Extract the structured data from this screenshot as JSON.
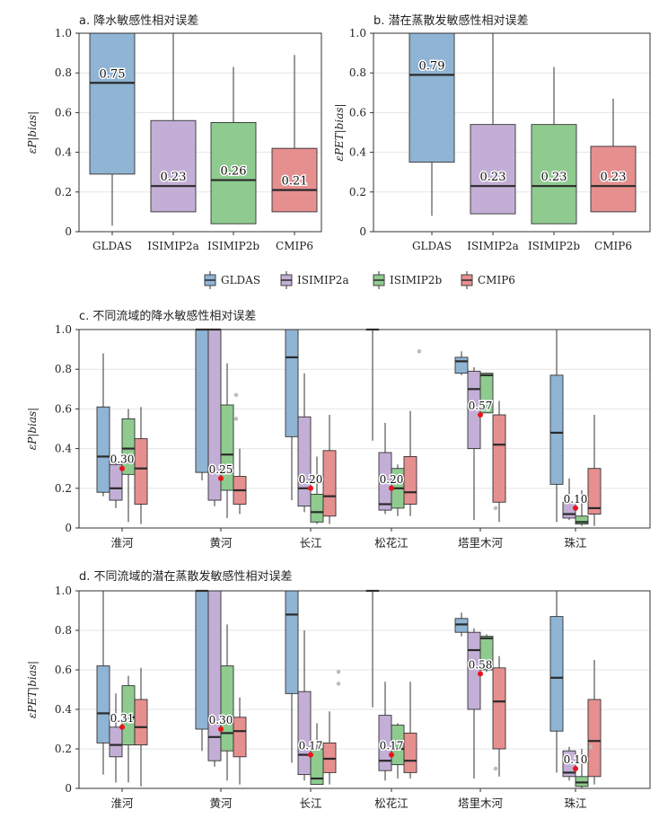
{
  "colors": {
    "GLDAS": "#8fb4d4",
    "ISIMIP2a": "#c3afd6",
    "ISIMIP2b": "#8fcb8f",
    "CMIP6": "#e68f8f",
    "mean_dot": "#e8141a",
    "outlier": "#bdbdbd"
  },
  "legend": [
    "GLDAS",
    "ISIMIP2a",
    "ISIMIP2b",
    "CMIP6"
  ],
  "chart_data": [
    {
      "type": "box",
      "title": "a. 降水敏感性相对误差",
      "ylabel": "εP|bias|",
      "ylim": [
        0,
        1.0
      ],
      "yticks": [
        "0",
        "0.2",
        "0.4",
        "0.6",
        "0.8",
        "1.0"
      ],
      "categories": [
        "GLDAS",
        "ISIMIP2a",
        "ISIMIP2b",
        "CMIP6"
      ],
      "boxes": [
        {
          "series": "GLDAS",
          "min": 0.03,
          "q1": 0.29,
          "median": 0.75,
          "q3": 1.0,
          "max": 1.0,
          "label": "0.75"
        },
        {
          "series": "ISIMIP2a",
          "min": 0.1,
          "q1": 0.1,
          "median": 0.23,
          "q3": 0.56,
          "max": 1.0,
          "label": "0.23"
        },
        {
          "series": "ISIMIP2b",
          "min": 0.04,
          "q1": 0.04,
          "median": 0.26,
          "q3": 0.55,
          "max": 0.83,
          "label": "0.26"
        },
        {
          "series": "CMIP6",
          "min": 0.1,
          "q1": 0.1,
          "median": 0.21,
          "q3": 0.42,
          "max": 0.89,
          "label": "0.21"
        }
      ]
    },
    {
      "type": "box",
      "title": "b. 潜在蒸散发敏感性相对误差",
      "ylabel": "εPET|bias|",
      "ylim": [
        0,
        1.0
      ],
      "yticks": [
        "0",
        "0.2",
        "0.4",
        "0.6",
        "0.8",
        "1.0"
      ],
      "categories": [
        "GLDAS",
        "ISIMIP2a",
        "ISIMIP2b",
        "CMIP6"
      ],
      "boxes": [
        {
          "series": "GLDAS",
          "min": 0.08,
          "q1": 0.35,
          "median": 0.79,
          "q3": 1.0,
          "max": 1.0,
          "label": "0.79"
        },
        {
          "series": "ISIMIP2a",
          "min": 0.09,
          "q1": 0.09,
          "median": 0.23,
          "q3": 0.54,
          "max": 1.0,
          "label": "0.23"
        },
        {
          "series": "ISIMIP2b",
          "min": 0.04,
          "q1": 0.04,
          "median": 0.23,
          "q3": 0.54,
          "max": 0.83,
          "label": "0.23"
        },
        {
          "series": "CMIP6",
          "min": 0.1,
          "q1": 0.1,
          "median": 0.23,
          "q3": 0.43,
          "max": 0.67,
          "label": "0.23"
        }
      ]
    },
    {
      "type": "grouped_box",
      "title": "c. 不同流域的降水敏感性相对误差",
      "ylabel": "εP|bias|",
      "ylim": [
        0,
        1.0
      ],
      "yticks": [
        "0",
        "0.2",
        "0.4",
        "0.6",
        "0.8",
        "1.0"
      ],
      "categories": [
        "淮河",
        "黄河",
        "长江",
        "松花江",
        "塔里木河",
        "珠江"
      ],
      "series": [
        "GLDAS",
        "ISIMIP2a",
        "ISIMIP2b",
        "CMIP6"
      ],
      "groups": [
        {
          "category": "淮河",
          "mean": 0.3,
          "label": "0.30",
          "boxes": [
            {
              "min": 0.16,
              "q1": 0.18,
              "median": 0.36,
              "q3": 0.61,
              "max": 0.88
            },
            {
              "min": 0.1,
              "q1": 0.14,
              "median": 0.2,
              "q3": 0.32,
              "max": 0.35
            },
            {
              "min": 0.03,
              "q1": 0.27,
              "median": 0.4,
              "q3": 0.55,
              "max": 0.6
            },
            {
              "min": 0.02,
              "q1": 0.12,
              "median": 0.3,
              "q3": 0.45,
              "max": 0.61
            }
          ],
          "outliers": []
        },
        {
          "category": "黄河",
          "mean": 0.25,
          "label": "0.25",
          "boxes": [
            {
              "min": 0.24,
              "q1": 0.28,
              "median": 1.0,
              "q3": 1.0,
              "max": 1.0
            },
            {
              "min": 0.11,
              "q1": 0.14,
              "median": 1.0,
              "q3": 1.0,
              "max": 1.0
            },
            {
              "min": 0.05,
              "q1": 0.19,
              "median": 0.37,
              "q3": 0.62,
              "max": 0.83
            },
            {
              "min": 0.07,
              "q1": 0.12,
              "median": 0.19,
              "q3": 0.26,
              "max": 0.4
            }
          ],
          "outliers": [
            {
              "series": "ISIMIP2b",
              "values": [
                0.67,
                0.55
              ]
            }
          ]
        },
        {
          "category": "长江",
          "mean": 0.2,
          "label": "0.20",
          "boxes": [
            {
              "min": 0.14,
              "q1": 0.46,
              "median": 0.86,
              "q3": 1.0,
              "max": 1.0
            },
            {
              "min": 0.08,
              "q1": 0.11,
              "median": 0.2,
              "q3": 0.56,
              "max": 0.78
            },
            {
              "min": 0.02,
              "q1": 0.03,
              "median": 0.08,
              "q3": 0.17,
              "max": 0.36
            },
            {
              "min": 0.02,
              "q1": 0.06,
              "median": 0.16,
              "q3": 0.39,
              "max": 0.57
            }
          ],
          "outliers": []
        },
        {
          "category": "松花江",
          "mean": 0.2,
          "label": "0.20",
          "boxes": [
            {
              "min": 0.44,
              "q1": 1.0,
              "median": 1.0,
              "q3": 1.0,
              "max": 1.0
            },
            {
              "min": 0.07,
              "q1": 0.09,
              "median": 0.12,
              "q3": 0.38,
              "max": 0.53
            },
            {
              "min": 0.06,
              "q1": 0.1,
              "median": 0.2,
              "q3": 0.3,
              "max": 0.32
            },
            {
              "min": 0.06,
              "q1": 0.12,
              "median": 0.18,
              "q3": 0.36,
              "max": 0.59
            }
          ],
          "outliers": [
            {
              "series": "CMIP6",
              "values": [
                0.89
              ]
            }
          ]
        },
        {
          "category": "塔里木河",
          "mean": 0.57,
          "label": "0.57",
          "boxes": [
            {
              "min": 0.77,
              "q1": 0.78,
              "median": 0.84,
              "q3": 0.86,
              "max": 0.89
            },
            {
              "min": 0.04,
              "q1": 0.4,
              "median": 0.7,
              "q3": 0.79,
              "max": 0.81
            },
            {
              "min": 0.58,
              "q1": 0.58,
              "median": 0.77,
              "q3": 0.78,
              "max": 0.78
            },
            {
              "min": 0.03,
              "q1": 0.13,
              "median": 0.42,
              "q3": 0.57,
              "max": 0.64
            }
          ],
          "outliers": [
            {
              "series": "ISIMIP2a",
              "values": [
                0.64
              ]
            },
            {
              "series": "ISIMIP2b",
              "values": [
                0.1
              ]
            }
          ]
        },
        {
          "category": "珠江",
          "mean": 0.1,
          "label": "0.10",
          "boxes": [
            {
              "min": 0.03,
              "q1": 0.22,
              "median": 0.48,
              "q3": 0.77,
              "max": 1.0
            },
            {
              "min": 0.04,
              "q1": 0.05,
              "median": 0.07,
              "q3": 0.13,
              "max": 0.25
            },
            {
              "min": 0.01,
              "q1": 0.02,
              "median": 0.03,
              "q3": 0.06,
              "max": 0.19
            },
            {
              "min": 0.01,
              "q1": 0.07,
              "median": 0.1,
              "q3": 0.3,
              "max": 0.57
            }
          ],
          "outliers": []
        }
      ]
    },
    {
      "type": "grouped_box",
      "title": "d. 不同流域的潜在蒸散发敏感性相对误差",
      "ylabel": "εPET|bias|",
      "ylim": [
        0,
        1.0
      ],
      "yticks": [
        "0",
        "0.2",
        "0.4",
        "0.6",
        "0.8",
        "1.0"
      ],
      "categories": [
        "淮河",
        "黄河",
        "长江",
        "松花江",
        "塔里木河",
        "珠江"
      ],
      "series": [
        "GLDAS",
        "ISIMIP2a",
        "ISIMIP2b",
        "CMIP6"
      ],
      "groups": [
        {
          "category": "淮河",
          "mean": 0.31,
          "label": "0.31",
          "boxes": [
            {
              "min": 0.07,
              "q1": 0.23,
              "median": 0.38,
              "q3": 0.62,
              "max": 1.0
            },
            {
              "min": 0.03,
              "q1": 0.16,
              "median": 0.22,
              "q3": 0.31,
              "max": 0.48
            },
            {
              "min": 0.03,
              "q1": 0.22,
              "median": 0.36,
              "q3": 0.52,
              "max": 0.57
            },
            {
              "min": 0.01,
              "q1": 0.22,
              "median": 0.31,
              "q3": 0.45,
              "max": 0.61
            }
          ],
          "outliers": []
        },
        {
          "category": "黄河",
          "mean": 0.3,
          "label": "0.30",
          "boxes": [
            {
              "min": 0.19,
              "q1": 0.3,
              "median": 1.0,
              "q3": 1.0,
              "max": 1.0
            },
            {
              "min": 0.11,
              "q1": 0.14,
              "median": 0.26,
              "q3": 1.0,
              "max": 1.0
            },
            {
              "min": 0.04,
              "q1": 0.19,
              "median": 0.28,
              "q3": 0.62,
              "max": 0.83
            },
            {
              "min": 0.02,
              "q1": 0.16,
              "median": 0.29,
              "q3": 0.36,
              "max": 0.46
            }
          ],
          "outliers": []
        },
        {
          "category": "长江",
          "mean": 0.17,
          "label": "0.17",
          "boxes": [
            {
              "min": 0.13,
              "q1": 0.48,
              "median": 0.88,
              "q3": 1.0,
              "max": 1.0
            },
            {
              "min": 0.04,
              "q1": 0.07,
              "median": 0.17,
              "q3": 0.49,
              "max": 0.8
            },
            {
              "min": 0.02,
              "q1": 0.02,
              "median": 0.05,
              "q3": 0.2,
              "max": 0.33
            },
            {
              "min": 0.02,
              "q1": 0.08,
              "median": 0.15,
              "q3": 0.23,
              "max": 0.39
            }
          ],
          "outliers": [
            {
              "series": "CMIP6",
              "values": [
                0.59,
                0.53
              ]
            }
          ]
        },
        {
          "category": "松花江",
          "mean": 0.17,
          "label": "0.17",
          "boxes": [
            {
              "min": 0.41,
              "q1": 1.0,
              "median": 1.0,
              "q3": 1.0,
              "max": 1.0
            },
            {
              "min": 0.04,
              "q1": 0.09,
              "median": 0.14,
              "q3": 0.37,
              "max": 0.54
            },
            {
              "min": 0.05,
              "q1": 0.12,
              "median": 0.2,
              "q3": 0.32,
              "max": 0.33
            },
            {
              "min": 0.05,
              "q1": 0.08,
              "median": 0.14,
              "q3": 0.28,
              "max": 0.54
            }
          ],
          "outliers": []
        },
        {
          "category": "塔里木河",
          "mean": 0.58,
          "label": "0.58",
          "boxes": [
            {
              "min": 0.77,
              "q1": 0.79,
              "median": 0.83,
              "q3": 0.86,
              "max": 0.89
            },
            {
              "min": 0.05,
              "q1": 0.4,
              "median": 0.7,
              "q3": 0.79,
              "max": 0.81
            },
            {
              "min": 0.59,
              "q1": 0.6,
              "median": 0.76,
              "q3": 0.77,
              "max": 0.78
            },
            {
              "min": 0.06,
              "q1": 0.2,
              "median": 0.44,
              "q3": 0.61,
              "max": 0.67
            }
          ],
          "outliers": [
            {
              "series": "ISIMIP2a",
              "values": [
                0.63
              ]
            },
            {
              "series": "ISIMIP2b",
              "values": [
                0.1
              ]
            }
          ]
        },
        {
          "category": "珠江",
          "mean": 0.1,
          "label": "0.10",
          "boxes": [
            {
              "min": 0.08,
              "q1": 0.29,
              "median": 0.56,
              "q3": 0.87,
              "max": 1.0
            },
            {
              "min": 0.04,
              "q1": 0.06,
              "median": 0.08,
              "q3": 0.19,
              "max": 0.21
            },
            {
              "min": 0.0,
              "q1": 0.01,
              "median": 0.03,
              "q3": 0.06,
              "max": 0.2
            },
            {
              "min": 0.02,
              "q1": 0.06,
              "median": 0.24,
              "q3": 0.45,
              "max": 0.65
            }
          ],
          "outliers": [
            {
              "series": "ISIMIP2b",
              "values": [
                0.21
              ]
            }
          ]
        }
      ]
    }
  ]
}
